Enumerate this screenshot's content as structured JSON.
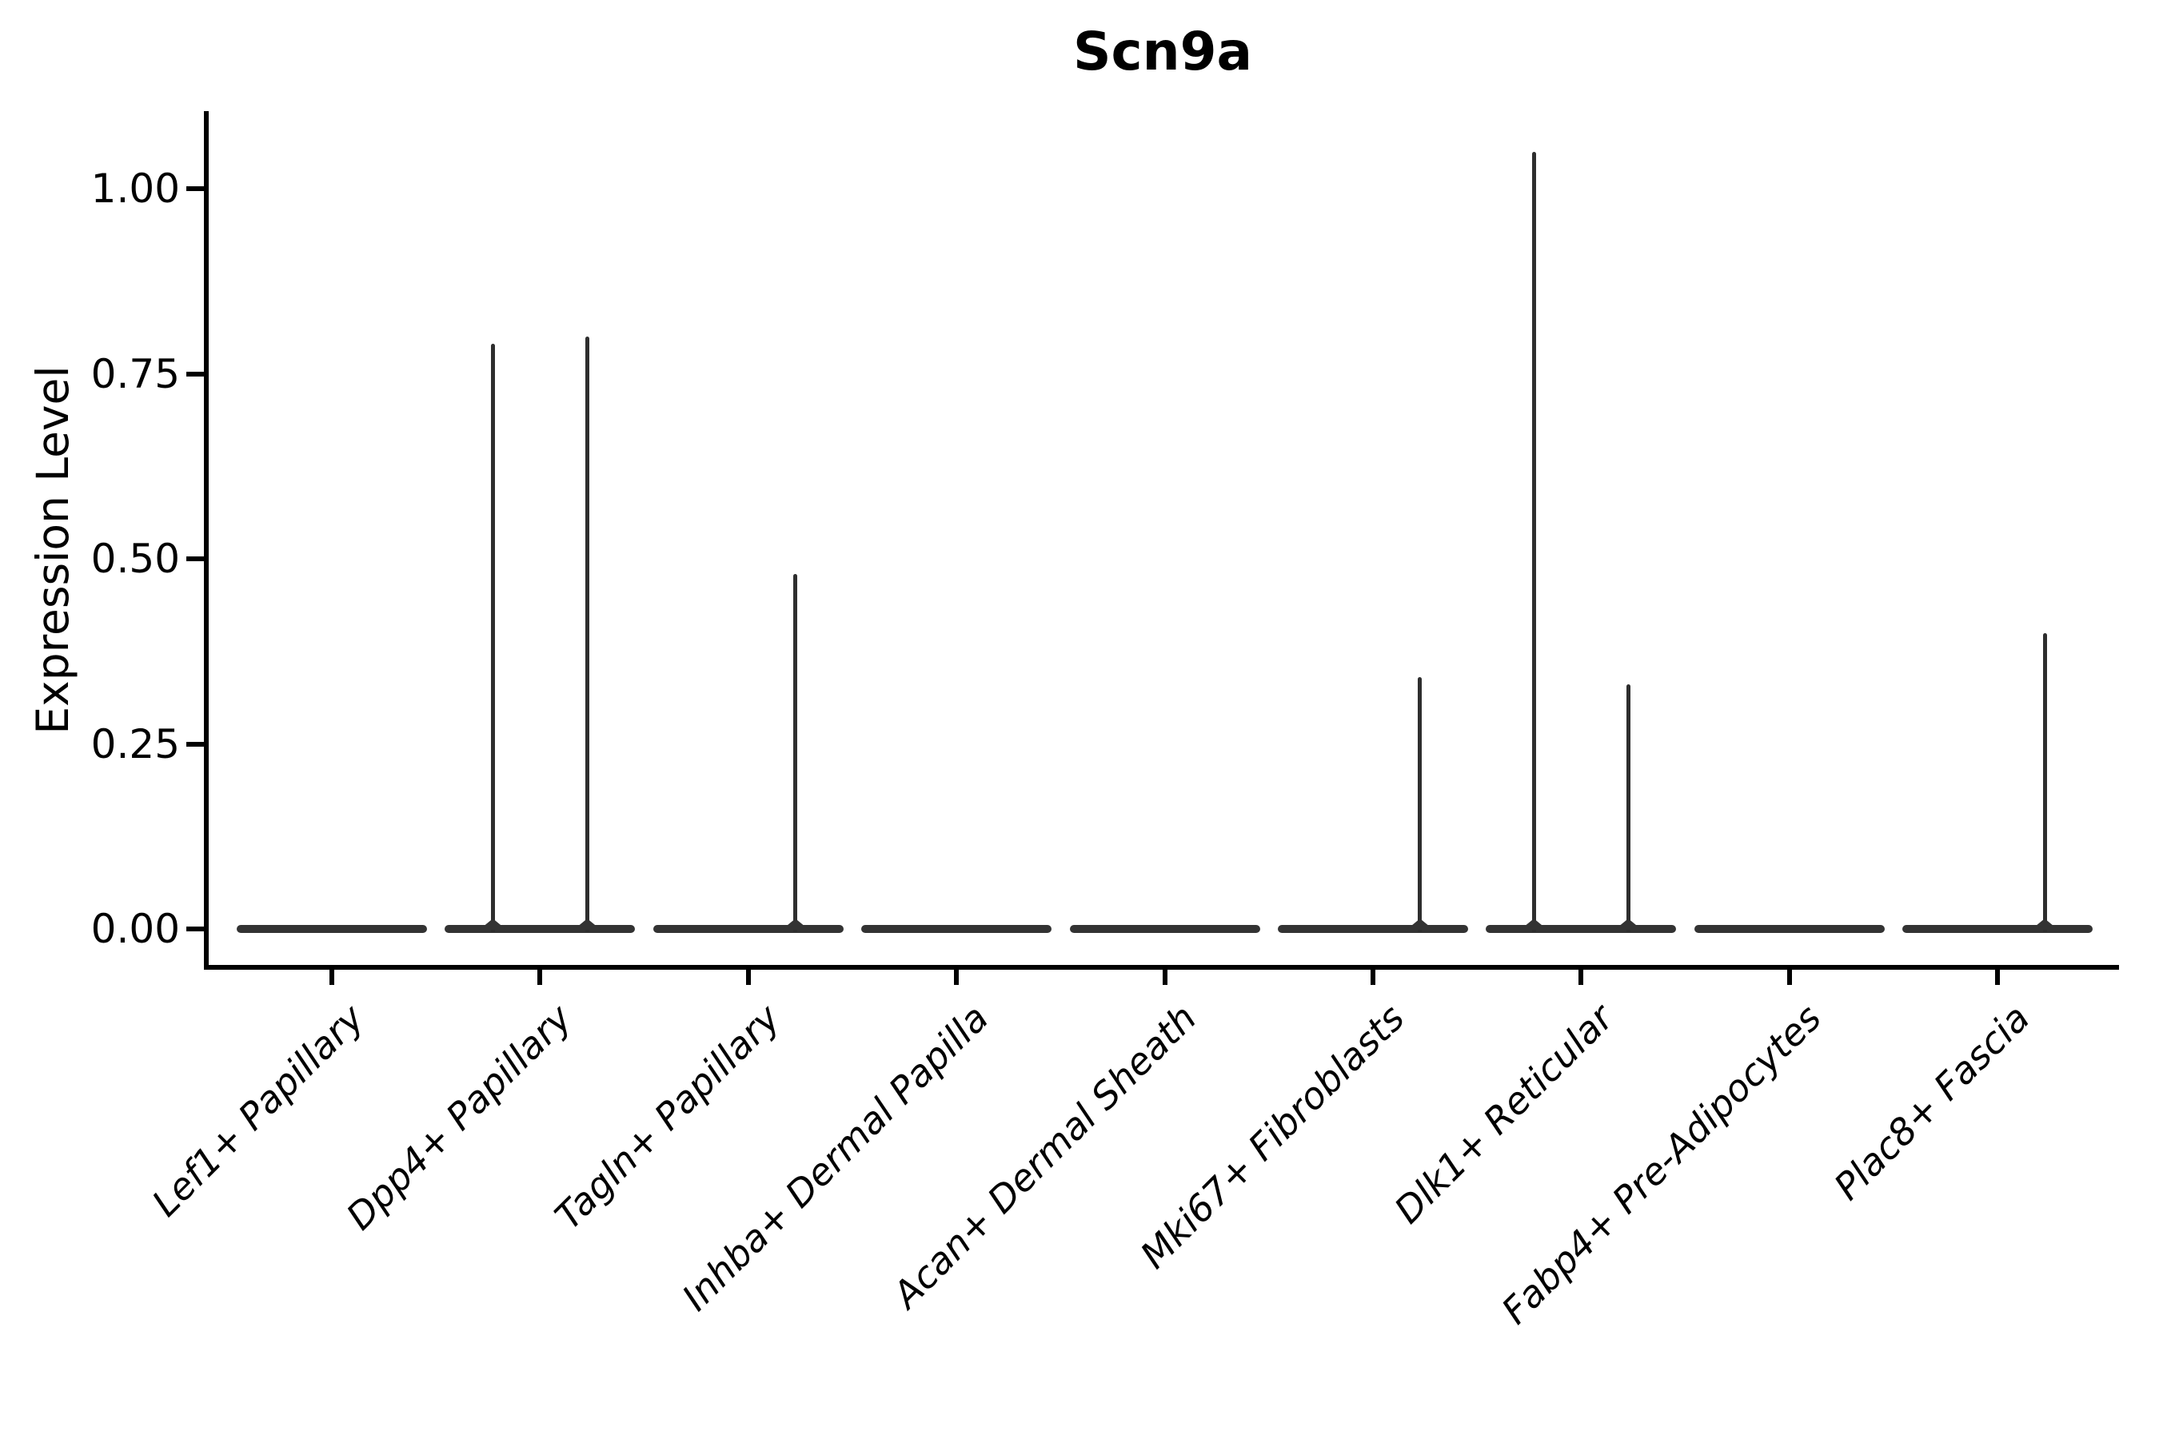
{
  "chart_data": {
    "type": "violin",
    "title": "Scn9a",
    "ylabel": "Expression Level",
    "xlabel": "",
    "ylim": [
      -0.05,
      1.1
    ],
    "grid": false,
    "legend": null,
    "x_tick_label_rotation_deg": 45,
    "colors": {
      "violin_line": "#333333",
      "axis": "#000000",
      "text": "#000000",
      "background": "#ffffff"
    },
    "yticks": [
      {
        "value": 0.0,
        "label": "0.00"
      },
      {
        "value": 0.25,
        "label": "0.25"
      },
      {
        "value": 0.5,
        "label": "0.50"
      },
      {
        "value": 0.75,
        "label": "0.75"
      },
      {
        "value": 1.0,
        "label": "1.00"
      }
    ],
    "violin_structure": "Each category contains two thin unfilled sub-violins (left and right of its tick). Expression is almost all zero, so each sub-violin collapses to a flat bar at 0 with a vertical needle reaching its maximum expression value; 0 means completely flat.",
    "categories": [
      {
        "label": "Lef1+ Papillary",
        "sub_violin_max": [
          0,
          0
        ]
      },
      {
        "label": "Dpp4+ Papillary",
        "sub_violin_max": [
          0.79,
          0.8
        ]
      },
      {
        "label": "Tagln+ Papillary",
        "sub_violin_max": [
          0,
          0.48
        ]
      },
      {
        "label": "Inhba+ Dermal Papilla",
        "sub_violin_max": [
          0,
          0
        ]
      },
      {
        "label": "Acan+ Dermal Sheath",
        "sub_violin_max": [
          0,
          0
        ]
      },
      {
        "label": "Mki67+ Fibroblasts",
        "sub_violin_max": [
          0,
          0.34
        ]
      },
      {
        "label": "Dlk1+ Reticular",
        "sub_violin_max": [
          1.05,
          0.33
        ]
      },
      {
        "label": "Fabp4+ Pre-Adipocytes",
        "sub_violin_max": [
          0,
          0
        ]
      },
      {
        "label": "Plac8+ Fascia",
        "sub_violin_max": [
          0,
          0.4
        ]
      }
    ]
  }
}
